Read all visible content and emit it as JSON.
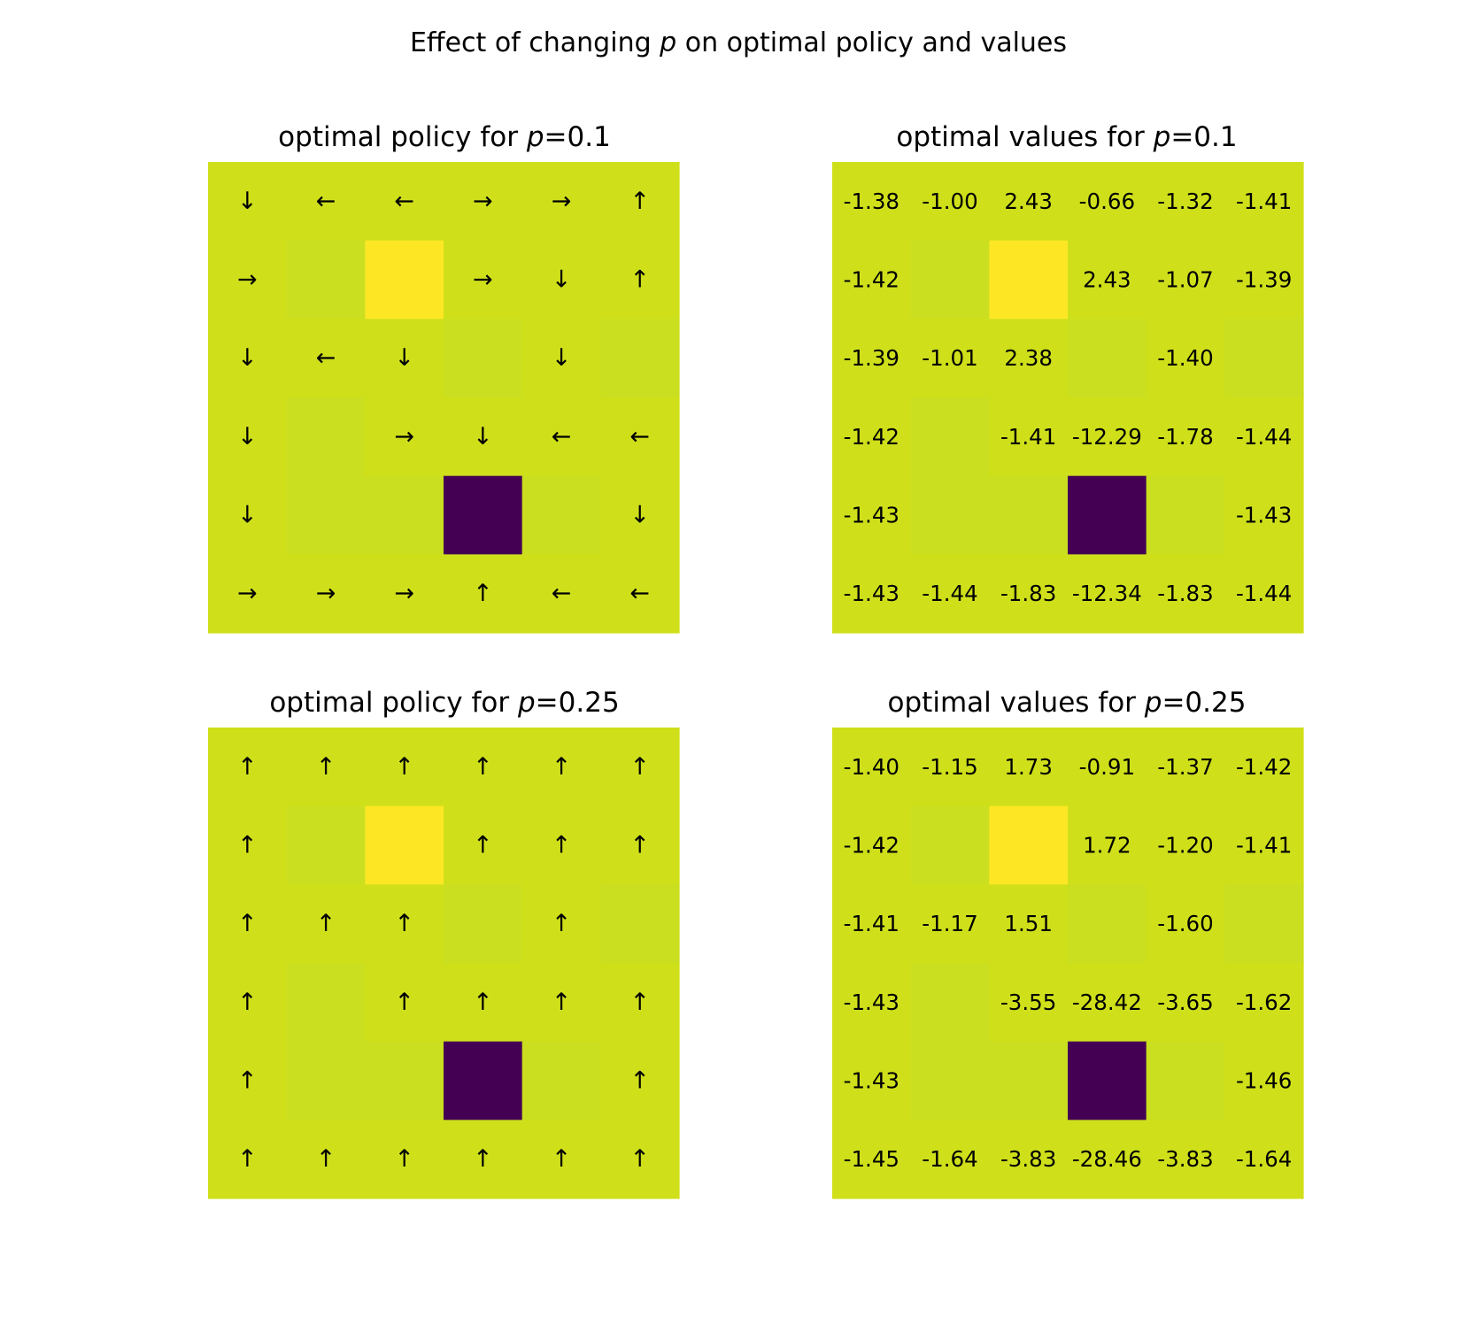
{
  "figure": {
    "title_prefix": "Effect of changing ",
    "title_symbol": "p",
    "title_suffix": " on optimal policy and values"
  },
  "colors": {
    "background": "#ffffff",
    "text": "#000000",
    "levels": {
      "low": "#440154",
      "wall": "#cadf20",
      "cell": "#cfe01b",
      "high": "#fde725"
    }
  },
  "chart_data": [
    {
      "type": "heatmap",
      "kind": "policy",
      "title_prefix": "optimal policy for ",
      "title_symbol": "p",
      "title_value": "=0.1",
      "grid": [
        [
          "cell",
          "cell",
          "cell",
          "cell",
          "cell",
          "cell"
        ],
        [
          "cell",
          "wall",
          "high",
          "cell",
          "cell",
          "cell"
        ],
        [
          "cell",
          "cell",
          "cell",
          "wall",
          "cell",
          "wall"
        ],
        [
          "cell",
          "wall",
          "cell",
          "cell",
          "cell",
          "cell"
        ],
        [
          "cell",
          "wall",
          "wall",
          "low",
          "wall",
          "cell"
        ],
        [
          "cell",
          "cell",
          "cell",
          "cell",
          "cell",
          "cell"
        ]
      ],
      "labels": [
        [
          "↓",
          "←",
          "←",
          "→",
          "→",
          "↑"
        ],
        [
          "→",
          "",
          "",
          "→",
          "↓",
          "↑"
        ],
        [
          "↓",
          "←",
          "↓",
          "",
          "↓",
          ""
        ],
        [
          "↓",
          "",
          "→",
          "↓",
          "←",
          "←"
        ],
        [
          "↓",
          "",
          "",
          "",
          "",
          "↓"
        ],
        [
          "→",
          "→",
          "→",
          "↑",
          "←",
          "←"
        ]
      ]
    },
    {
      "type": "heatmap",
      "kind": "values",
      "title_prefix": "optimal values for ",
      "title_symbol": "p",
      "title_value": "=0.1",
      "grid": [
        [
          "cell",
          "cell",
          "cell",
          "cell",
          "cell",
          "cell"
        ],
        [
          "cell",
          "wall",
          "high",
          "cell",
          "cell",
          "cell"
        ],
        [
          "cell",
          "cell",
          "cell",
          "wall",
          "cell",
          "wall"
        ],
        [
          "cell",
          "wall",
          "cell",
          "cell",
          "cell",
          "cell"
        ],
        [
          "cell",
          "wall",
          "wall",
          "low",
          "wall",
          "cell"
        ],
        [
          "cell",
          "cell",
          "cell",
          "cell",
          "cell",
          "cell"
        ]
      ],
      "labels": [
        [
          "-1.38",
          "-1.00",
          "2.43",
          "-0.66",
          "-1.32",
          "-1.41"
        ],
        [
          "-1.42",
          "",
          "",
          "2.43",
          "-1.07",
          "-1.39"
        ],
        [
          "-1.39",
          "-1.01",
          "2.38",
          "",
          "-1.40",
          ""
        ],
        [
          "-1.42",
          "",
          "-1.41",
          "-12.29",
          "-1.78",
          "-1.44"
        ],
        [
          "-1.43",
          "",
          "",
          "",
          "",
          "-1.43"
        ],
        [
          "-1.43",
          "-1.44",
          "-1.83",
          "-12.34",
          "-1.83",
          "-1.44"
        ]
      ]
    },
    {
      "type": "heatmap",
      "kind": "policy",
      "title_prefix": "optimal policy for ",
      "title_symbol": "p",
      "title_value": "=0.25",
      "grid": [
        [
          "cell",
          "cell",
          "cell",
          "cell",
          "cell",
          "cell"
        ],
        [
          "cell",
          "wall",
          "high",
          "cell",
          "cell",
          "cell"
        ],
        [
          "cell",
          "cell",
          "cell",
          "wall",
          "cell",
          "wall"
        ],
        [
          "cell",
          "wall",
          "cell",
          "cell",
          "cell",
          "cell"
        ],
        [
          "cell",
          "wall",
          "wall",
          "low",
          "wall",
          "cell"
        ],
        [
          "cell",
          "cell",
          "cell",
          "cell",
          "cell",
          "cell"
        ]
      ],
      "labels": [
        [
          "↑",
          "↑",
          "↑",
          "↑",
          "↑",
          "↑"
        ],
        [
          "↑",
          "",
          "",
          "↑",
          "↑",
          "↑"
        ],
        [
          "↑",
          "↑",
          "↑",
          "",
          "↑",
          ""
        ],
        [
          "↑",
          "",
          "↑",
          "↑",
          "↑",
          "↑"
        ],
        [
          "↑",
          "",
          "",
          "",
          "",
          "↑"
        ],
        [
          "↑",
          "↑",
          "↑",
          "↑",
          "↑",
          "↑"
        ]
      ]
    },
    {
      "type": "heatmap",
      "kind": "values",
      "title_prefix": "optimal values for ",
      "title_symbol": "p",
      "title_value": "=0.25",
      "grid": [
        [
          "cell",
          "cell",
          "cell",
          "cell",
          "cell",
          "cell"
        ],
        [
          "cell",
          "wall",
          "high",
          "cell",
          "cell",
          "cell"
        ],
        [
          "cell",
          "cell",
          "cell",
          "wall",
          "cell",
          "wall"
        ],
        [
          "cell",
          "wall",
          "cell",
          "cell",
          "cell",
          "cell"
        ],
        [
          "cell",
          "wall",
          "wall",
          "low",
          "wall",
          "cell"
        ],
        [
          "cell",
          "cell",
          "cell",
          "cell",
          "cell",
          "cell"
        ]
      ],
      "labels": [
        [
          "-1.40",
          "-1.15",
          "1.73",
          "-0.91",
          "-1.37",
          "-1.42"
        ],
        [
          "-1.42",
          "",
          "",
          "1.72",
          "-1.20",
          "-1.41"
        ],
        [
          "-1.41",
          "-1.17",
          "1.51",
          "",
          "-1.60",
          ""
        ],
        [
          "-1.43",
          "",
          "-3.55",
          "-28.42",
          "-3.65",
          "-1.62"
        ],
        [
          "-1.43",
          "",
          "",
          "",
          "",
          "-1.46"
        ],
        [
          "-1.45",
          "-1.64",
          "-3.83",
          "-28.46",
          "-3.83",
          "-1.64"
        ]
      ]
    }
  ]
}
